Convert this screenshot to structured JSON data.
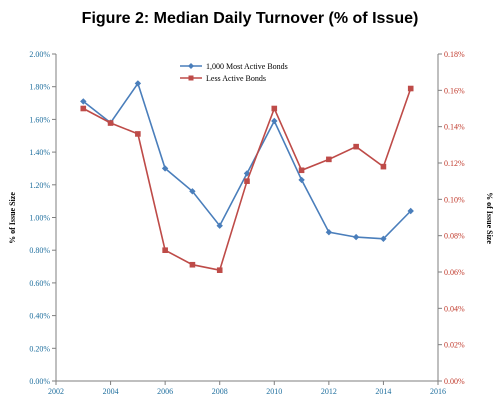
{
  "colors": {
    "series_1": "#4a7ebb",
    "series_2": "#be4b48",
    "axis": "#7f7f7f",
    "left_ticks": "#1f6f9e",
    "right_ticks": "#c0392b"
  },
  "chart_data": {
    "type": "line",
    "title": "Figure 2: Median Daily Turnover (% of Issue)",
    "ylabel": "% of Issue Size",
    "y2label": "% of Issue Size",
    "xlim": [
      2002,
      2016
    ],
    "ylim": [
      0,
      2.0
    ],
    "y2lim": [
      0,
      0.18
    ],
    "x_ticks": [
      "2002",
      "2004",
      "2006",
      "2008",
      "2010",
      "2012",
      "2014",
      "2016"
    ],
    "y_ticks": [
      "0.00%",
      "0.20%",
      "0.40%",
      "0.60%",
      "0.80%",
      "1.00%",
      "1.20%",
      "1.40%",
      "1.60%",
      "1.80%",
      "2.00%"
    ],
    "y2_ticks": [
      "0.00%",
      "0.02%",
      "0.04%",
      "0.06%",
      "0.08%",
      "0.10%",
      "0.12%",
      "0.14%",
      "0.16%",
      "0.18%"
    ],
    "legend_position": "top-center",
    "series": [
      {
        "name": "1,000 Most Active Bonds",
        "axis": "left",
        "marker": "diamond",
        "x": [
          2003,
          2004,
          2005,
          2006,
          2007,
          2008,
          2009,
          2010,
          2011,
          2012,
          2013,
          2014,
          2015
        ],
        "values": [
          1.71,
          1.58,
          1.82,
          1.3,
          1.16,
          0.95,
          1.27,
          1.59,
          1.23,
          0.91,
          0.88,
          0.87,
          1.04
        ]
      },
      {
        "name": "Less Active Bonds",
        "axis": "right",
        "marker": "square",
        "x": [
          2003,
          2004,
          2005,
          2006,
          2007,
          2008,
          2009,
          2010,
          2011,
          2012,
          2013,
          2014,
          2015
        ],
        "values": [
          0.15,
          0.142,
          0.136,
          0.072,
          0.064,
          0.061,
          0.11,
          0.15,
          0.116,
          0.122,
          0.129,
          0.118,
          0.161
        ]
      }
    ]
  }
}
